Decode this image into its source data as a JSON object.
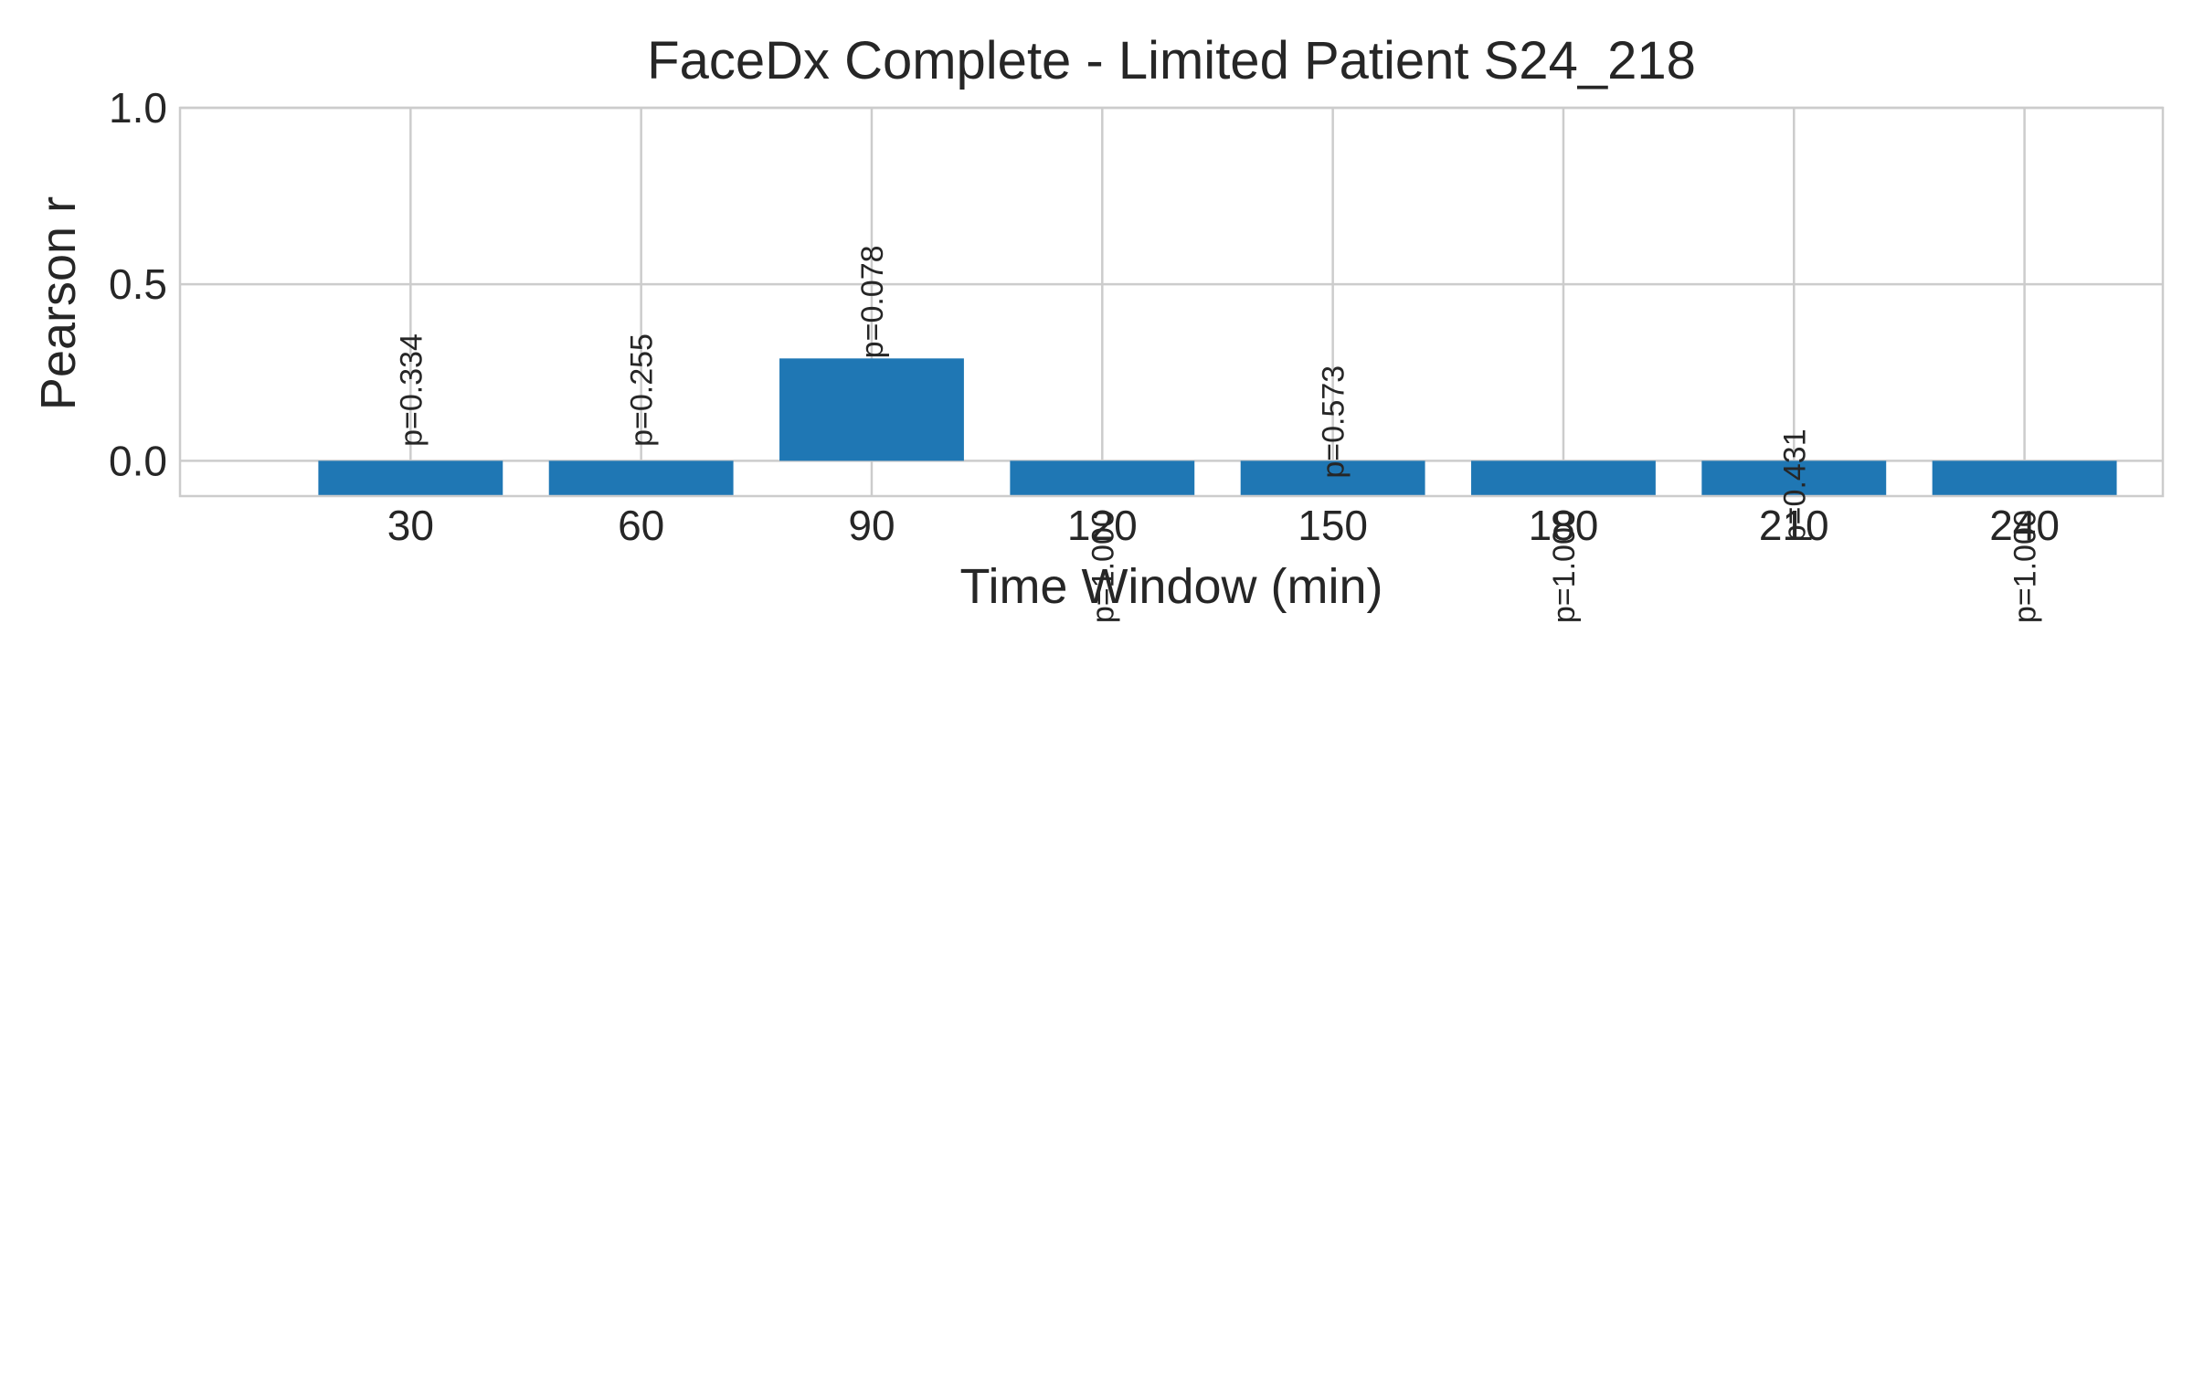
{
  "chart_data": {
    "type": "bar",
    "title": "FaceDx Complete - Limited Patient S24_218",
    "xlabel": "Time Window (min)",
    "ylabel": "Pearson r",
    "categories": [
      "30",
      "60",
      "90",
      "120",
      "150",
      "180",
      "210",
      "240"
    ],
    "values": [
      -0.1,
      -0.1,
      0.29,
      -0.1,
      -0.1,
      -0.1,
      -0.1,
      -0.1
    ],
    "annotations": [
      "p=0.334",
      "p=0.255",
      "p=0.078",
      "p=1.000",
      "p=0.573",
      "p=1.000",
      "p=0.431",
      "p=1.000"
    ],
    "annotation_anchor_y": [
      0.04,
      0.04,
      0.29,
      -0.46,
      -0.05,
      -0.46,
      -0.23,
      -0.46
    ],
    "yticks": [
      0.0,
      0.5,
      1.0
    ],
    "ytick_labels": [
      "0.0",
      "0.5",
      "1.0"
    ],
    "ylim": [
      -0.1,
      1.0
    ],
    "xlim": [
      0,
      8.6
    ],
    "grid": true,
    "bar_color": "#1f77b4",
    "grid_color": "#cccccc",
    "text_color": "#262626"
  }
}
